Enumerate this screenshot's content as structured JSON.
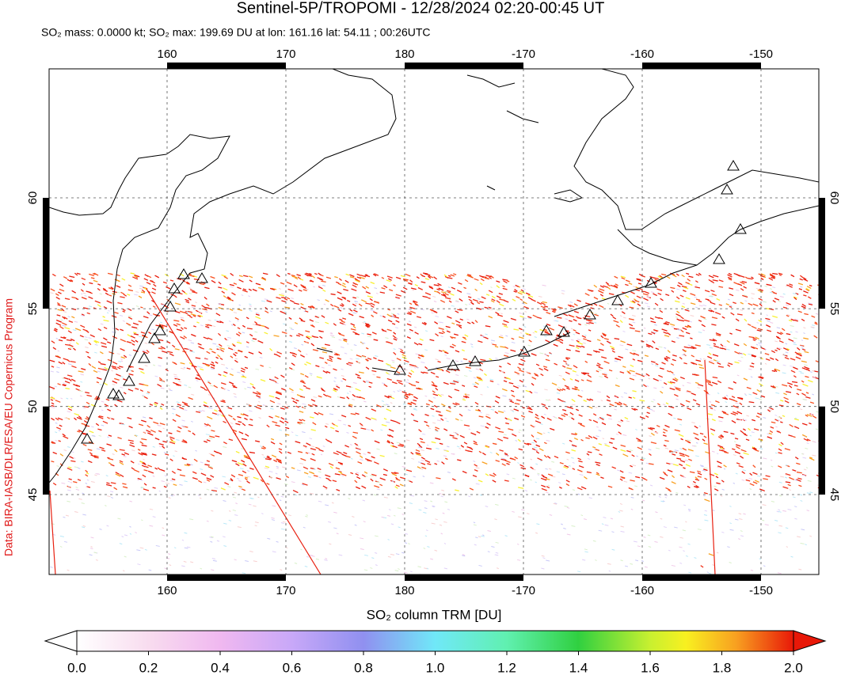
{
  "header": {
    "title": "Sentinel-5P/TROPOMI - 12/28/2024 02:20-00:45 UT",
    "subtitle": "SO₂ mass: 0.0000 kt; SO₂ max: 199.69 DU at lon: 161.16 lat: 54.11 ; 00:26UTC"
  },
  "map": {
    "lon_ticks": [
      160,
      170,
      180,
      -170,
      -160,
      -150
    ],
    "lat_ticks": [
      60,
      55,
      50,
      45
    ],
    "grid": true,
    "credit": "Data: BIRA-IASB/DLR/ESA/EU Copernicus Program"
  },
  "colorbar": {
    "label": "SO₂ column TRM [DU]",
    "range": [
      0,
      2
    ],
    "ticks": [
      {
        "value": 0,
        "label": "0.0"
      },
      {
        "value": 0.2,
        "label": "0.2"
      },
      {
        "value": 0.4,
        "label": "0.4"
      },
      {
        "value": 0.6,
        "label": "0.6"
      },
      {
        "value": 0.8,
        "label": "0.8"
      },
      {
        "value": 1,
        "label": "1.0"
      },
      {
        "value": 1.2,
        "label": "1.2"
      },
      {
        "value": 1.4,
        "label": "1.4"
      },
      {
        "value": 1.6,
        "label": "1.6"
      },
      {
        "value": 1.8,
        "label": "1.8"
      },
      {
        "value": 2,
        "label": "2.0"
      }
    ]
  }
}
